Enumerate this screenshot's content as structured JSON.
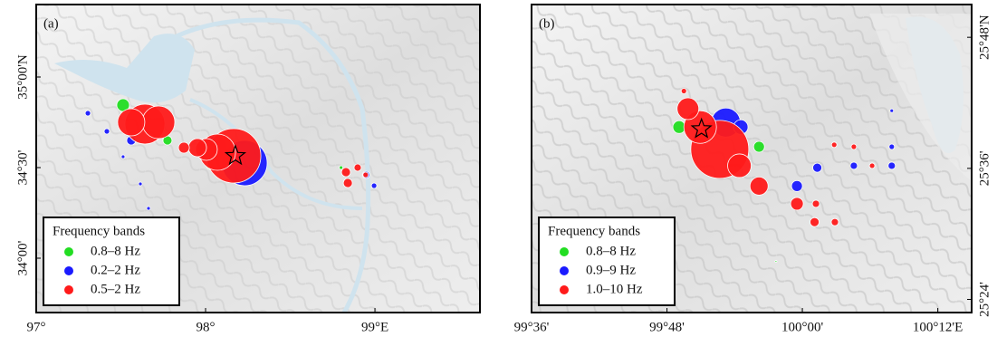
{
  "chart_data": [
    {
      "type": "scatter",
      "panel_label": "(a)",
      "xlim": [
        97,
        99.62
      ],
      "ylim": [
        33.7,
        35.4
      ],
      "xticks": [
        {
          "value": 97,
          "label": "97°"
        },
        {
          "value": 98,
          "label": "98°"
        },
        {
          "value": 99,
          "label": "99°E"
        }
      ],
      "yticks": [
        {
          "value": 34,
          "label": "34°00'"
        },
        {
          "value": 34.5,
          "label": "34°30'"
        },
        {
          "value": 35,
          "label": "35°00'N"
        }
      ],
      "legend_title": "Frequency bands",
      "legend_position": "lower left",
      "epicenter": {
        "x": 98.176,
        "y": 34.565
      },
      "series": [
        {
          "name": "0.8–8 Hz",
          "color": "#22dd22",
          "x": [
            97.513,
            97.775,
            98.027,
            98.8
          ],
          "values": [
            34.845,
            34.65,
            34.51,
            34.5
          ],
          "sizes": [
            7,
            5,
            4,
            2
          ]
        },
        {
          "name": "0.2–2 Hz",
          "color": "#1a1aff",
          "x": [
            98.23,
            98.06,
            97.561,
            97.417,
            97.305,
            97.615,
            97.663,
            97.513,
            98.947,
            98.995,
            97.99
          ],
          "values": [
            34.525,
            34.615,
            34.65,
            34.7,
            34.8,
            34.41,
            34.275,
            34.56,
            34.46,
            34.4,
            34.61
          ],
          "sizes": [
            25,
            12,
            5,
            3,
            3,
            2,
            2,
            2,
            4,
            3,
            6
          ]
        },
        {
          "name": "0.5–2 Hz",
          "color": "#ff1a1a",
          "x": [
            98.166,
            97.642,
            97.722,
            97.561,
            98.07,
            98.005,
            97.952,
            97.872,
            98.829,
            98.84,
            98.898,
            98.945
          ],
          "values": [
            34.565,
            34.74,
            34.75,
            34.75,
            34.585,
            34.6,
            34.61,
            34.61,
            34.475,
            34.415,
            34.5,
            34.46
          ],
          "sizes": [
            30,
            22,
            18,
            15,
            20,
            12,
            10,
            6,
            5,
            5,
            4,
            3
          ]
        }
      ]
    },
    {
      "type": "scatter",
      "panel_label": "(b)",
      "xlim": [
        99.6,
        100.25
      ],
      "ylim": [
        25.38,
        25.85
      ],
      "xticks": [
        {
          "value": 99.6,
          "label": "99°36'"
        },
        {
          "value": 99.8,
          "label": "99°48'"
        },
        {
          "value": 100,
          "label": "100°00'"
        },
        {
          "value": 100.2,
          "label": "100°12'E"
        }
      ],
      "yticks": [
        {
          "value": 25.4,
          "label": "25°24'"
        },
        {
          "value": 25.6,
          "label": "25°36'"
        },
        {
          "value": 25.8,
          "label": "25°48'N"
        }
      ],
      "legend_title": "Frequency bands",
      "legend_position": "lower left",
      "epicenter": {
        "x": 99.851,
        "y": 25.66
      },
      "series": [
        {
          "name": "0.8–8 Hz",
          "color": "#22dd22",
          "x": [
            99.936,
            99.818,
            99.961
          ],
          "values": [
            25.633,
            25.663,
            25.458
          ],
          "sizes": [
            6,
            7,
            1
          ]
        },
        {
          "name": "0.9–9 Hz",
          "color": "#1a1aff",
          "x": [
            99.887,
            99.909,
            99.992,
            100.022,
            100.076,
            100.132,
            100.132,
            100.132
          ],
          "values": [
            25.67,
            25.663,
            25.573,
            25.601,
            25.604,
            25.688,
            25.604,
            25.633
          ],
          "sizes": [
            16,
            8,
            6,
            5,
            4,
            2,
            4,
            3
          ]
        },
        {
          "name": "1.0–10 Hz",
          "color": "#ff1a1a",
          "x": [
            99.878,
            99.849,
            99.831,
            99.907,
            99.936,
            99.992,
            100.018,
            100.048,
            100.02,
            100.047,
            100.076,
            100.103,
            99.825
          ],
          "values": [
            25.629,
            25.663,
            25.691,
            25.604,
            25.573,
            25.546,
            25.518,
            25.518,
            25.546,
            25.636,
            25.633,
            25.604,
            25.718
          ],
          "sizes": [
            32,
            18,
            12,
            13,
            10,
            7,
            5,
            4,
            4,
            3,
            3,
            3,
            3
          ]
        }
      ]
    }
  ]
}
